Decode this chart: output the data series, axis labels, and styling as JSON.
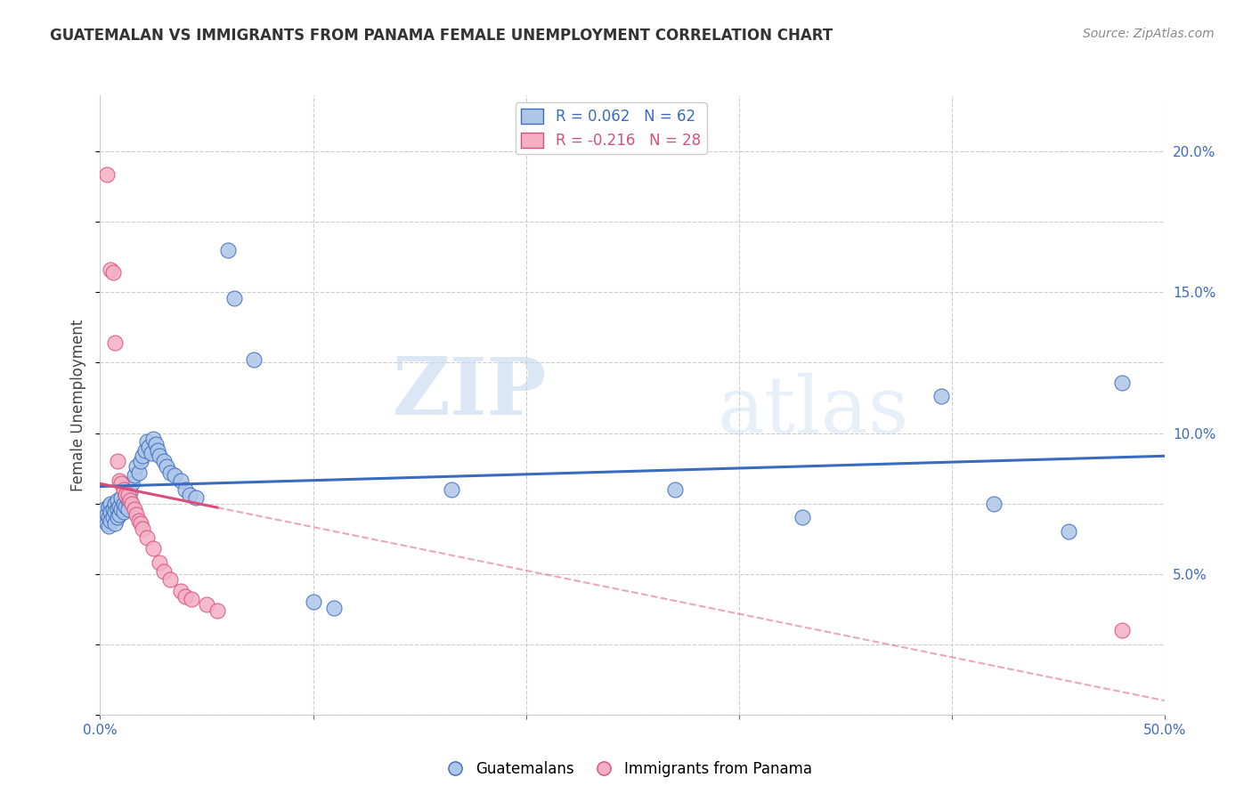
{
  "title": "GUATEMALAN VS IMMIGRANTS FROM PANAMA FEMALE UNEMPLOYMENT CORRELATION CHART",
  "source": "Source: ZipAtlas.com",
  "ylabel": "Female Unemployment",
  "xlim": [
    0.0,
    0.5
  ],
  "ylim": [
    0.0,
    0.22
  ],
  "yticks": [
    0.05,
    0.1,
    0.15,
    0.2
  ],
  "ytick_labels": [
    "5.0%",
    "10.0%",
    "15.0%",
    "20.0%"
  ],
  "xticks": [
    0.0,
    0.1,
    0.2,
    0.3,
    0.4,
    0.5
  ],
  "blue_R": 0.062,
  "blue_N": 62,
  "pink_R": -0.216,
  "pink_N": 28,
  "blue_color": "#aec6e8",
  "pink_color": "#f4afc4",
  "blue_line_color": "#3a6bbf",
  "pink_line_color": "#d94f7a",
  "blue_scatter": [
    [
      0.002,
      0.073
    ],
    [
      0.003,
      0.071
    ],
    [
      0.003,
      0.068
    ],
    [
      0.004,
      0.074
    ],
    [
      0.004,
      0.07
    ],
    [
      0.004,
      0.067
    ],
    [
      0.005,
      0.075
    ],
    [
      0.005,
      0.072
    ],
    [
      0.005,
      0.069
    ],
    [
      0.006,
      0.073
    ],
    [
      0.006,
      0.07
    ],
    [
      0.007,
      0.075
    ],
    [
      0.007,
      0.072
    ],
    [
      0.007,
      0.068
    ],
    [
      0.008,
      0.076
    ],
    [
      0.008,
      0.073
    ],
    [
      0.008,
      0.07
    ],
    [
      0.009,
      0.074
    ],
    [
      0.009,
      0.071
    ],
    [
      0.01,
      0.077
    ],
    [
      0.01,
      0.073
    ],
    [
      0.011,
      0.075
    ],
    [
      0.011,
      0.072
    ],
    [
      0.012,
      0.078
    ],
    [
      0.012,
      0.074
    ],
    [
      0.013,
      0.076
    ],
    [
      0.013,
      0.073
    ],
    [
      0.014,
      0.079
    ],
    [
      0.015,
      0.082
    ],
    [
      0.016,
      0.085
    ],
    [
      0.017,
      0.088
    ],
    [
      0.018,
      0.086
    ],
    [
      0.019,
      0.09
    ],
    [
      0.02,
      0.092
    ],
    [
      0.021,
      0.094
    ],
    [
      0.022,
      0.097
    ],
    [
      0.023,
      0.095
    ],
    [
      0.024,
      0.093
    ],
    [
      0.025,
      0.098
    ],
    [
      0.026,
      0.096
    ],
    [
      0.027,
      0.094
    ],
    [
      0.028,
      0.092
    ],
    [
      0.03,
      0.09
    ],
    [
      0.031,
      0.088
    ],
    [
      0.033,
      0.086
    ],
    [
      0.035,
      0.085
    ],
    [
      0.038,
      0.083
    ],
    [
      0.04,
      0.08
    ],
    [
      0.042,
      0.078
    ],
    [
      0.045,
      0.077
    ],
    [
      0.06,
      0.165
    ],
    [
      0.063,
      0.148
    ],
    [
      0.072,
      0.126
    ],
    [
      0.1,
      0.04
    ],
    [
      0.11,
      0.038
    ],
    [
      0.165,
      0.08
    ],
    [
      0.27,
      0.08
    ],
    [
      0.33,
      0.07
    ],
    [
      0.395,
      0.113
    ],
    [
      0.42,
      0.075
    ],
    [
      0.455,
      0.065
    ],
    [
      0.48,
      0.118
    ]
  ],
  "pink_scatter": [
    [
      0.003,
      0.192
    ],
    [
      0.005,
      0.158
    ],
    [
      0.006,
      0.157
    ],
    [
      0.007,
      0.132
    ],
    [
      0.008,
      0.09
    ],
    [
      0.009,
      0.083
    ],
    [
      0.01,
      0.082
    ],
    [
      0.011,
      0.08
    ],
    [
      0.012,
      0.078
    ],
    [
      0.013,
      0.078
    ],
    [
      0.014,
      0.076
    ],
    [
      0.015,
      0.075
    ],
    [
      0.016,
      0.073
    ],
    [
      0.017,
      0.071
    ],
    [
      0.018,
      0.069
    ],
    [
      0.019,
      0.068
    ],
    [
      0.02,
      0.066
    ],
    [
      0.022,
      0.063
    ],
    [
      0.025,
      0.059
    ],
    [
      0.028,
      0.054
    ],
    [
      0.03,
      0.051
    ],
    [
      0.033,
      0.048
    ],
    [
      0.038,
      0.044
    ],
    [
      0.04,
      0.042
    ],
    [
      0.043,
      0.041
    ],
    [
      0.05,
      0.039
    ],
    [
      0.055,
      0.037
    ],
    [
      0.48,
      0.03
    ]
  ],
  "watermark_zip": "ZIP",
  "watermark_atlas": "atlas",
  "background_color": "#ffffff",
  "grid_color": "#cccccc"
}
